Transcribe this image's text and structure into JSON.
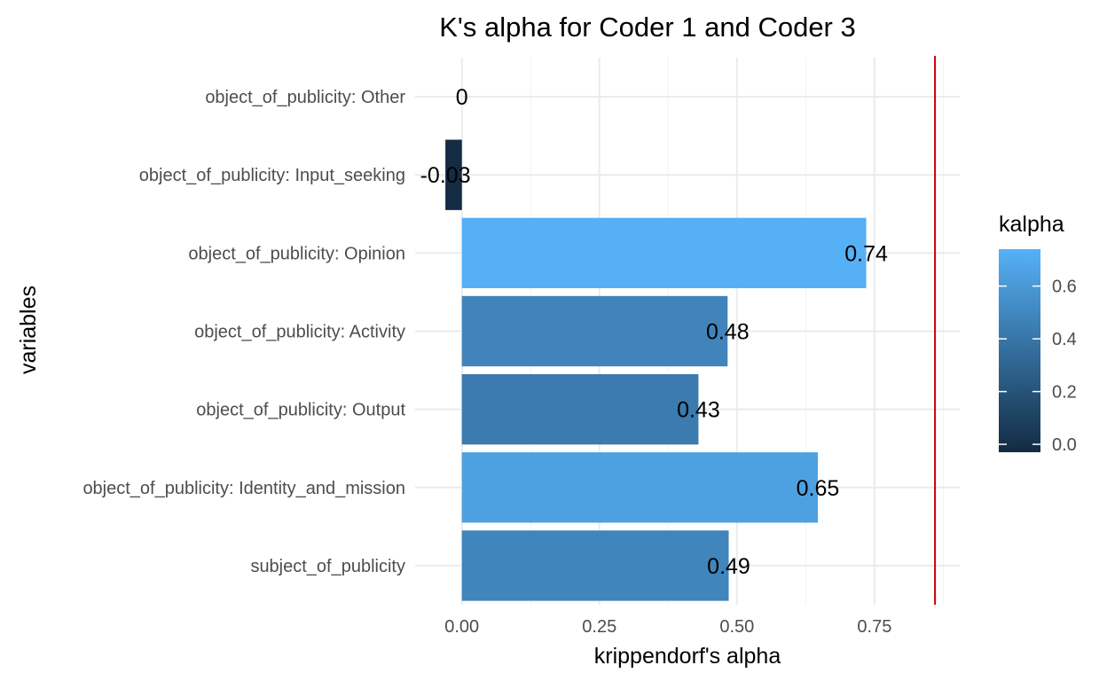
{
  "chart_data": {
    "type": "bar",
    "orientation": "horizontal",
    "title": "K's alpha for Coder 1 and Coder 3",
    "xlabel": "krippendorf's alpha",
    "ylabel": "variables",
    "categories": [
      "object_of_publicity: Other",
      "object_of_publicity: Input_seeking",
      "object_of_publicity: Opinion",
      "object_of_publicity: Activity",
      "object_of_publicity: Output",
      "object_of_publicity: Identity_and_mission",
      "subject_of_publicity"
    ],
    "values": [
      0,
      -0.03,
      0.735,
      0.483,
      0.43,
      0.647,
      0.485
    ],
    "data_labels": [
      "0",
      "-0.03",
      "0.74",
      "0.48",
      "0.43",
      "0.65",
      "0.49"
    ],
    "x_ticks": [
      0,
      0.25,
      0.5,
      0.75
    ],
    "x_tick_labels": [
      "0.00",
      "0.25",
      "0.50",
      "0.75"
    ],
    "xlim": [
      -0.085,
      0.905
    ],
    "reference_line": {
      "value": 0.86,
      "color": "#cc0000"
    },
    "grid": true,
    "legend": {
      "title": "kalpha",
      "placement": "right",
      "ticks": [
        0,
        0.2,
        0.4,
        0.6
      ],
      "tick_labels": [
        "0.0",
        "0.2",
        "0.4",
        "0.6"
      ],
      "range": [
        -0.03,
        0.74
      ],
      "color_low": "#132B43",
      "color_high": "#56B1F7"
    }
  }
}
